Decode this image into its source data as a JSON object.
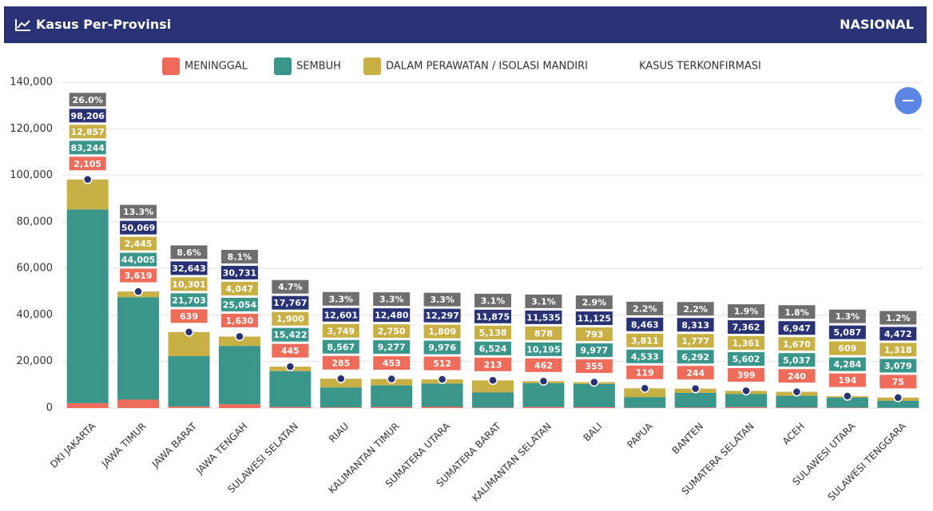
{
  "header": {
    "title": "Kasus Per-Provinsi",
    "scope": "NASIONAL"
  },
  "chart_data": {
    "type": "bar",
    "stacked": true,
    "categories": [
      "DKI JAKARTA",
      "JAWA TIMUR",
      "JAWA BARAT",
      "JAWA TENGAH",
      "SULAWESI SELATAN",
      "RIAU",
      "KALIMANTAN TIMUR",
      "SUMATERA UTARA",
      "SUMATERA BARAT",
      "KALIMANTAN SELATAN",
      "BALI",
      "PAPUA",
      "BANTEN",
      "SUMATERA SELATAN",
      "ACEH",
      "SULAWESI UTARA",
      "SULAWESI TENGGARA"
    ],
    "series": [
      {
        "name": "MENINGGAL",
        "color": "#ef6c5a",
        "values": [
          2105,
          3619,
          639,
          1630,
          445,
          285,
          453,
          512,
          213,
          462,
          355,
          119,
          244,
          399,
          240,
          194,
          75
        ],
        "value_labels": [
          "2,105",
          "3,619",
          "639",
          "1,630",
          "445",
          "285",
          "453",
          "512",
          "213",
          "462",
          "355",
          "119",
          "244",
          "399",
          "240",
          "194",
          "75"
        ]
      },
      {
        "name": "SEMBUH",
        "color": "#3a968a",
        "values": [
          83244,
          44005,
          21703,
          25054,
          15422,
          8567,
          9277,
          9976,
          6524,
          10195,
          9977,
          4533,
          6292,
          5602,
          5037,
          4284,
          3079
        ],
        "value_labels": [
          "83,244",
          "44,005",
          "21,703",
          "25,054",
          "15,422",
          "8,567",
          "9,277",
          "9,976",
          "6,524",
          "10,195",
          "9,977",
          "4,533",
          "6,292",
          "5,602",
          "5,037",
          "4,284",
          "3,079"
        ]
      },
      {
        "name": "DALAM PERAWATAN / ISOLASI MANDIRI",
        "color": "#c9b044",
        "values": [
          12857,
          2445,
          10301,
          4047,
          1900,
          3749,
          2750,
          1809,
          5138,
          878,
          793,
          3811,
          1777,
          1361,
          1670,
          609,
          1318
        ],
        "value_labels": [
          "12,857",
          "2,445",
          "10,301",
          "4,047",
          "1,900",
          "3,749",
          "2,750",
          "1,809",
          "5,138",
          "878",
          "793",
          "3,811",
          "1,777",
          "1,361",
          "1,670",
          "609",
          "1,318"
        ]
      },
      {
        "name": "KASUS TERKONFIRMASI",
        "type": "scatter",
        "color": "#283275",
        "values": [
          98206,
          50069,
          32643,
          30731,
          17767,
          12601,
          12480,
          12297,
          11875,
          11535,
          11125,
          8463,
          8313,
          7362,
          6947,
          5087,
          4472
        ],
        "value_labels": [
          "98,206",
          "50,069",
          "32,643",
          "30,731",
          "17,767",
          "12,601",
          "12,480",
          "12,297",
          "11,875",
          "11,535",
          "11,125",
          "8,463",
          "8,313",
          "7,362",
          "6,947",
          "5,087",
          "4,472"
        ]
      }
    ],
    "shares": {
      "color": "#6e6e6e",
      "values": [
        26.0,
        13.3,
        8.6,
        8.1,
        4.7,
        3.3,
        3.3,
        3.3,
        3.1,
        3.1,
        2.9,
        2.2,
        2.2,
        1.9,
        1.8,
        1.3,
        1.2
      ],
      "value_labels": [
        "26.0%",
        "13.3%",
        "8.6%",
        "8.1%",
        "4.7%",
        "3.3%",
        "3.3%",
        "3.3%",
        "3.1%",
        "3.1%",
        "2.9%",
        "2.2%",
        "2.2%",
        "1.9%",
        "1.8%",
        "1.3%",
        "1.2%"
      ]
    },
    "ylim": [
      0,
      140000
    ],
    "yticks": [
      {
        "value": 0,
        "label": "0"
      },
      {
        "value": 20000,
        "label": "20,000"
      },
      {
        "value": 40000,
        "label": "40,000"
      },
      {
        "value": 60000,
        "label": "60,000"
      },
      {
        "value": 80000,
        "label": "80,000"
      },
      {
        "value": 100000,
        "label": "100,000"
      },
      {
        "value": 120000,
        "label": "120,000"
      },
      {
        "value": 140000,
        "label": "140,000"
      }
    ],
    "grid": true
  }
}
